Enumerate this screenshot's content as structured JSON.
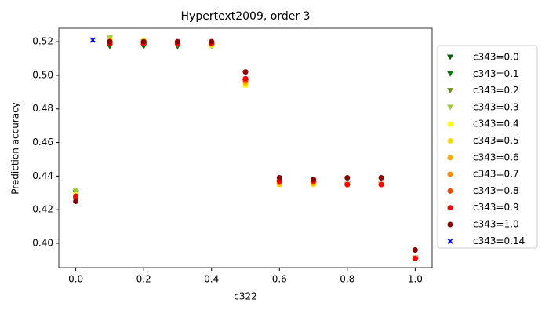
{
  "chart_data": {
    "type": "scatter",
    "title": "Hypertext2009, order 3",
    "x_label": "c322",
    "y_label": "Prediction accuracy",
    "xlim": [
      -0.05,
      1.05
    ],
    "ylim": [
      0.3855,
      0.528
    ],
    "xticks": [
      {
        "value": 0,
        "label": "0.0"
      },
      {
        "value": 0.2,
        "label": "0.2"
      },
      {
        "value": 0.4,
        "label": "0.4"
      },
      {
        "value": 0.6,
        "label": "0.6"
      },
      {
        "value": 0.8,
        "label": "0.8"
      },
      {
        "value": 1,
        "label": "1.0"
      }
    ],
    "yticks": [
      {
        "value": 0.4,
        "label": "0.40"
      },
      {
        "value": 0.42,
        "label": "0.42"
      },
      {
        "value": 0.44,
        "label": "0.44"
      },
      {
        "value": 0.46,
        "label": "0.46"
      },
      {
        "value": 0.48,
        "label": "0.48"
      },
      {
        "value": 0.5,
        "label": "0.50"
      },
      {
        "value": 0.52,
        "label": "0.52"
      }
    ],
    "legend": "right",
    "series": [
      {
        "name": "c343=0.0",
        "color": "#006400",
        "marker": "v",
        "x": [
          0,
          0.1,
          0.2,
          0.3,
          0.4,
          0.5,
          0.6,
          0.7,
          0.8,
          0.9,
          1
        ],
        "values": [
          0.43,
          0.517,
          0.517,
          0.517,
          0.517,
          0.496,
          0.436,
          0.435,
          0.435,
          0.435,
          0.391
        ]
      },
      {
        "name": "c343=0.1",
        "color": "#008000",
        "marker": "v",
        "x": [
          0,
          0.1,
          0.2,
          0.3,
          0.4,
          0.5,
          0.6,
          0.7,
          0.8,
          0.9,
          1
        ],
        "values": [
          0.43,
          0.518,
          0.518,
          0.518,
          0.518,
          0.496,
          0.436,
          0.435,
          0.435,
          0.435,
          0.391
        ]
      },
      {
        "name": "c343=0.2",
        "color": "#6b8e23",
        "marker": "v",
        "x": [
          0,
          0.1,
          0.2,
          0.3,
          0.4,
          0.5,
          0.6,
          0.7,
          0.8,
          0.9,
          1
        ],
        "values": [
          0.43,
          0.522,
          0.519,
          0.518,
          0.518,
          0.496,
          0.436,
          0.435,
          0.435,
          0.435,
          0.391
        ]
      },
      {
        "name": "c343=0.3",
        "color": "#9acd32",
        "marker": "v",
        "x": [
          0,
          0.1,
          0.2,
          0.3,
          0.4,
          0.5,
          0.6,
          0.7,
          0.8,
          0.9,
          1
        ],
        "values": [
          0.431,
          0.522,
          0.52,
          0.519,
          0.517,
          0.495,
          0.436,
          0.435,
          0.435,
          0.435,
          0.391
        ]
      },
      {
        "name": "c343=0.4",
        "color": "#ffff00",
        "marker": "o",
        "x": [
          0,
          0.1,
          0.2,
          0.3,
          0.4,
          0.5,
          0.6,
          0.7,
          0.8,
          0.9,
          1
        ],
        "values": [
          0.429,
          0.521,
          0.521,
          0.519,
          0.518,
          0.494,
          0.435,
          0.435,
          0.435,
          0.435,
          0.391
        ]
      },
      {
        "name": "c343=0.5",
        "color": "#ffd700",
        "marker": "o",
        "x": [
          0,
          0.1,
          0.2,
          0.3,
          0.4,
          0.5,
          0.6,
          0.7,
          0.8,
          0.9,
          1
        ],
        "values": [
          0.428,
          0.521,
          0.52,
          0.519,
          0.518,
          0.495,
          0.435,
          0.435,
          0.435,
          0.435,
          0.391
        ]
      },
      {
        "name": "c343=0.6",
        "color": "#ffa500",
        "marker": "o",
        "x": [
          0,
          0.1,
          0.2,
          0.3,
          0.4,
          0.5,
          0.6,
          0.7,
          0.8,
          0.9,
          1
        ],
        "values": [
          0.428,
          0.52,
          0.52,
          0.519,
          0.519,
          0.496,
          0.436,
          0.436,
          0.435,
          0.435,
          0.391
        ]
      },
      {
        "name": "c343=0.7",
        "color": "#ff8c00",
        "marker": "o",
        "x": [
          0,
          0.1,
          0.2,
          0.3,
          0.4,
          0.5,
          0.6,
          0.7,
          0.8,
          0.9,
          1
        ],
        "values": [
          0.427,
          0.52,
          0.52,
          0.519,
          0.519,
          0.497,
          0.436,
          0.436,
          0.435,
          0.435,
          0.391
        ]
      },
      {
        "name": "c343=0.8",
        "color": "#ff4500",
        "marker": "o",
        "x": [
          0,
          0.1,
          0.2,
          0.3,
          0.4,
          0.5,
          0.6,
          0.7,
          0.8,
          0.9,
          1
        ],
        "values": [
          0.427,
          0.52,
          0.519,
          0.519,
          0.519,
          0.497,
          0.437,
          0.437,
          0.435,
          0.435,
          0.391
        ]
      },
      {
        "name": "c343=0.9",
        "color": "#ff0000",
        "marker": "o",
        "x": [
          0,
          0.1,
          0.2,
          0.3,
          0.4,
          0.5,
          0.6,
          0.7,
          0.8,
          0.9,
          1
        ],
        "values": [
          0.428,
          0.519,
          0.519,
          0.519,
          0.519,
          0.498,
          0.437,
          0.437,
          0.435,
          0.435,
          0.391
        ]
      },
      {
        "name": "c343=1.0",
        "color": "#8b0000",
        "marker": "o",
        "x": [
          0,
          0.1,
          0.2,
          0.3,
          0.4,
          0.5,
          0.6,
          0.7,
          0.8,
          0.9,
          1
        ],
        "values": [
          0.425,
          0.52,
          0.52,
          0.52,
          0.52,
          0.502,
          0.439,
          0.438,
          0.439,
          0.439,
          0.396
        ]
      },
      {
        "name": "c343=0.14",
        "color": "#0000ff",
        "marker": "x",
        "x": [
          0.05
        ],
        "values": [
          0.521
        ]
      }
    ]
  }
}
